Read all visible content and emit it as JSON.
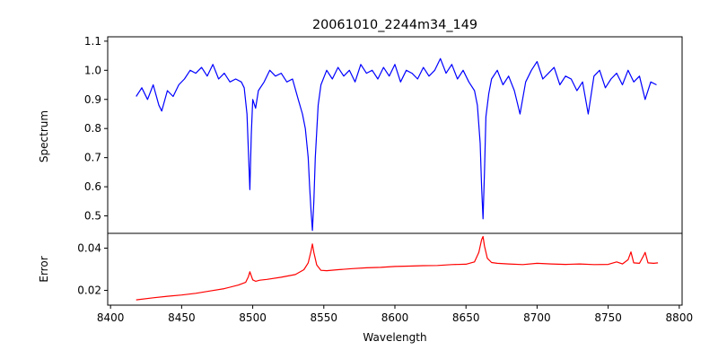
{
  "chart_data": [
    {
      "type": "line",
      "title": "20061010_2244m34_149",
      "xlabel": "",
      "ylabel": "Spectrum",
      "xlim": [
        8398,
        8802
      ],
      "ylim": [
        0.44,
        1.115
      ],
      "yticks": [
        "0.5",
        "0.6",
        "0.7",
        "0.8",
        "0.9",
        "1.0",
        "1.1"
      ],
      "ytick_values": [
        0.5,
        0.6,
        0.7,
        0.8,
        0.9,
        1.0,
        1.1
      ],
      "grid": false,
      "series": [
        {
          "color": "#0000ff",
          "x": [
            8418,
            8422,
            8426,
            8430,
            8434,
            8436,
            8440,
            8444,
            8448,
            8452,
            8456,
            8460,
            8464,
            8468,
            8472,
            8476,
            8480,
            8484,
            8488,
            8492,
            8494,
            8496,
            8497,
            8498,
            8499,
            8500,
            8502,
            8504,
            8508,
            8512,
            8516,
            8520,
            8524,
            8528,
            8532,
            8535,
            8537,
            8539,
            8540,
            8541,
            8542,
            8543,
            8544,
            8546,
            8548,
            8552,
            8556,
            8560,
            8564,
            8568,
            8572,
            8576,
            8580,
            8584,
            8588,
            8592,
            8596,
            8600,
            8604,
            8608,
            8612,
            8616,
            8620,
            8624,
            8628,
            8632,
            8636,
            8640,
            8644,
            8648,
            8652,
            8656,
            8658,
            8660,
            8661,
            8662,
            8663,
            8664,
            8666,
            8668,
            8672,
            8676,
            8680,
            8684,
            8688,
            8692,
            8696,
            8700,
            8704,
            8708,
            8712,
            8716,
            8720,
            8724,
            8728,
            8732,
            8736,
            8740,
            8744,
            8748,
            8752,
            8756,
            8760,
            8764,
            8768,
            8772,
            8776,
            8780,
            8784
          ],
          "values": [
            0.91,
            0.94,
            0.9,
            0.95,
            0.88,
            0.86,
            0.93,
            0.91,
            0.95,
            0.97,
            1.0,
            0.99,
            1.01,
            0.98,
            1.02,
            0.97,
            0.99,
            0.96,
            0.97,
            0.96,
            0.94,
            0.85,
            0.72,
            0.59,
            0.78,
            0.9,
            0.87,
            0.93,
            0.96,
            1.0,
            0.98,
            0.99,
            0.96,
            0.97,
            0.9,
            0.85,
            0.8,
            0.7,
            0.6,
            0.52,
            0.45,
            0.55,
            0.7,
            0.88,
            0.95,
            1.0,
            0.97,
            1.01,
            0.98,
            1.0,
            0.96,
            1.02,
            0.99,
            1.0,
            0.97,
            1.01,
            0.98,
            1.02,
            0.96,
            1.0,
            0.99,
            0.97,
            1.01,
            0.98,
            1.0,
            1.04,
            0.99,
            1.02,
            0.97,
            1.0,
            0.96,
            0.93,
            0.88,
            0.75,
            0.6,
            0.49,
            0.65,
            0.84,
            0.92,
            0.97,
            1.0,
            0.95,
            0.98,
            0.93,
            0.85,
            0.96,
            1.0,
            1.03,
            0.97,
            0.99,
            1.01,
            0.95,
            0.98,
            0.97,
            0.93,
            0.96,
            0.85,
            0.98,
            1.0,
            0.94,
            0.97,
            0.99,
            0.95,
            1.0,
            0.96,
            0.98,
            0.9,
            0.96,
            0.95
          ]
        }
      ]
    },
    {
      "type": "line",
      "title": "",
      "xlabel": "Wavelength",
      "ylabel": "Error",
      "xlim": [
        8398,
        8802
      ],
      "ylim": [
        0.013,
        0.047
      ],
      "xticks": [
        "8400",
        "8450",
        "8500",
        "8550",
        "8600",
        "8650",
        "8700",
        "8750",
        "8800"
      ],
      "xtick_values": [
        8400,
        8450,
        8500,
        8550,
        8600,
        8650,
        8700,
        8750,
        8800
      ],
      "yticks": [
        "0.02",
        "0.04"
      ],
      "ytick_values": [
        0.02,
        0.04
      ],
      "grid": false,
      "series": [
        {
          "color": "#ff0000",
          "x": [
            8418,
            8430,
            8440,
            8450,
            8460,
            8470,
            8480,
            8490,
            8495,
            8497,
            8498,
            8500,
            8502,
            8505,
            8510,
            8520,
            8530,
            8536,
            8539,
            8541,
            8542,
            8543,
            8545,
            8548,
            8552,
            8560,
            8570,
            8580,
            8590,
            8600,
            8610,
            8620,
            8630,
            8640,
            8650,
            8656,
            8659,
            8661,
            8662,
            8663,
            8665,
            8668,
            8672,
            8680,
            8690,
            8700,
            8710,
            8720,
            8730,
            8740,
            8750,
            8756,
            8760,
            8764,
            8766,
            8768,
            8772,
            8775,
            8776,
            8778,
            8782,
            8785
          ],
          "values": [
            0.0155,
            0.0165,
            0.0172,
            0.0178,
            0.0186,
            0.0197,
            0.0208,
            0.0225,
            0.0238,
            0.0265,
            0.0288,
            0.025,
            0.0243,
            0.0248,
            0.0252,
            0.0262,
            0.0275,
            0.0298,
            0.033,
            0.0385,
            0.042,
            0.038,
            0.032,
            0.0295,
            0.0293,
            0.0298,
            0.0303,
            0.0307,
            0.0309,
            0.0313,
            0.0315,
            0.0317,
            0.0318,
            0.0322,
            0.0324,
            0.0335,
            0.038,
            0.044,
            0.0455,
            0.041,
            0.0352,
            0.0332,
            0.0328,
            0.0325,
            0.0322,
            0.0328,
            0.0325,
            0.0323,
            0.0325,
            0.0322,
            0.0323,
            0.0335,
            0.0325,
            0.0345,
            0.0382,
            0.033,
            0.0328,
            0.0365,
            0.038,
            0.033,
            0.0328,
            0.033
          ]
        }
      ]
    }
  ]
}
